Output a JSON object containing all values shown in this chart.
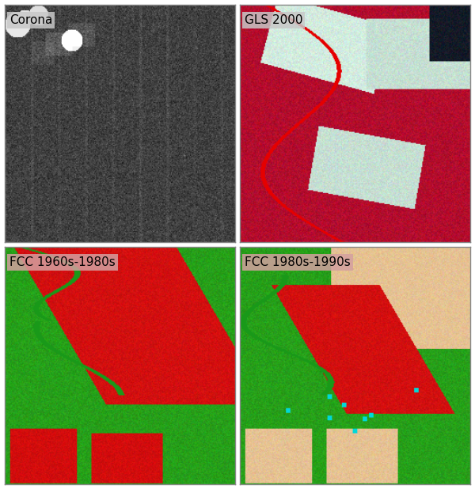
{
  "figsize": [
    6.0,
    6.18
  ],
  "dpi": 100,
  "titles": [
    "Corona",
    "GLS 2000",
    "FCC 1960s-1980s",
    "FCC 1980s-1990s"
  ],
  "title_fontsize": 11,
  "title_bg_color": [
    "#c8c8c8",
    "#c8c8c8",
    "#d4a0a0",
    "#d4a0a0"
  ],
  "title_text_color": [
    "black",
    "black",
    "black",
    "black"
  ],
  "outer_border_color": "#888888",
  "grid_rows": 2,
  "grid_cols": 2,
  "image_size": 256
}
